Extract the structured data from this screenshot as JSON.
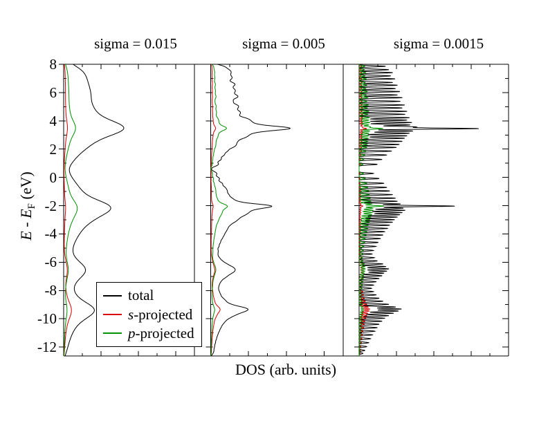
{
  "axes": {
    "x_label": "DOS (arb. units)",
    "y_label_E1": "E",
    "y_label_sep": " - ",
    "y_label_E2": "E",
    "y_label_sub": "F",
    "y_label_units": " (eV)",
    "y_ticks": [
      "8",
      "6",
      "4",
      "2",
      "0",
      "-2",
      "-4",
      "-6",
      "-8",
      "-10",
      "-12"
    ]
  },
  "legend": {
    "entries": [
      {
        "label_italic": "",
        "label": "total",
        "color": "#000000"
      },
      {
        "label_italic": "s",
        "label": "-projected",
        "color": "#d80000"
      },
      {
        "label_italic": "p",
        "label": "-projected",
        "color": "#009000"
      }
    ]
  },
  "chart_data": {
    "type": "line",
    "orientation": "horizontal_dos_vs_energy",
    "xlabel": "DOS (arb. units)",
    "ylabel": "E - EF (eV)",
    "ylim": [
      -12.63,
      8
    ],
    "y_major_ticks": [
      8,
      6,
      4,
      2,
      0,
      -2,
      -4,
      -6,
      -8,
      -10,
      -12
    ],
    "y_minor_ticks": [
      7,
      5,
      3,
      1,
      -1,
      -3,
      -5,
      -7,
      -9,
      -11
    ],
    "grid": false,
    "legend_position": "lower-left-panel-1",
    "series_meta": [
      {
        "name": "total",
        "color": "#000000"
      },
      {
        "name": "s-projected",
        "color": "#d80000"
      },
      {
        "name": "p-projected",
        "color": "#009000"
      }
    ],
    "panels": [
      {
        "title": "sigma = 0.015",
        "sigma": 0.015,
        "peak_fraction": 0.46
      },
      {
        "title": "sigma = 0.005",
        "sigma": 0.005,
        "peak_fraction": 0.6
      },
      {
        "title": "sigma = 0.0015",
        "sigma": 0.0015,
        "peak_fraction": 0.8
      }
    ],
    "sigma_scale_eV": 27.2114,
    "levels_format": [
      "energy_eV",
      "w_total",
      "w_s",
      "w_p"
    ],
    "levels": [
      [
        7.86,
        0.55,
        0.05,
        0.12
      ],
      [
        7.62,
        0.62,
        0.04,
        0.11
      ],
      [
        7.41,
        0.7,
        0.05,
        0.14
      ],
      [
        7.18,
        0.66,
        0.04,
        0.12
      ],
      [
        6.97,
        0.75,
        0.05,
        0.15
      ],
      [
        6.71,
        0.7,
        0.06,
        0.13
      ],
      [
        6.52,
        0.8,
        0.05,
        0.16
      ],
      [
        6.28,
        0.76,
        0.05,
        0.14
      ],
      [
        6.07,
        0.85,
        0.06,
        0.17
      ],
      [
        5.83,
        0.8,
        0.05,
        0.15
      ],
      [
        5.64,
        0.9,
        0.06,
        0.18
      ],
      [
        5.38,
        0.86,
        0.06,
        0.16
      ],
      [
        5.12,
        0.95,
        0.06,
        0.19
      ],
      [
        4.91,
        0.9,
        0.07,
        0.17
      ],
      [
        4.67,
        1.0,
        0.06,
        0.2
      ],
      [
        4.46,
        0.96,
        0.07,
        0.18
      ],
      [
        4.22,
        1.05,
        0.07,
        0.21
      ],
      [
        4.05,
        1.0,
        0.06,
        0.2
      ],
      [
        3.88,
        1.1,
        0.07,
        0.22
      ],
      [
        3.71,
        1.06,
        0.07,
        0.2
      ],
      [
        3.57,
        1.15,
        0.07,
        0.23
      ],
      [
        3.46,
        1.3,
        0.08,
        0.26
      ],
      [
        3.44,
        1.25,
        0.08,
        0.25
      ],
      [
        3.28,
        1.12,
        0.07,
        0.22
      ],
      [
        3.12,
        1.05,
        0.07,
        0.2
      ],
      [
        2.94,
        1.0,
        0.06,
        0.2
      ],
      [
        2.77,
        0.95,
        0.06,
        0.19
      ],
      [
        2.55,
        0.9,
        0.06,
        0.18
      ],
      [
        2.33,
        0.84,
        0.05,
        0.17
      ],
      [
        2.12,
        0.78,
        0.05,
        0.16
      ],
      [
        1.86,
        0.68,
        0.05,
        0.14
      ],
      [
        1.58,
        0.58,
        0.04,
        0.12
      ],
      [
        1.27,
        0.48,
        0.03,
        0.1
      ],
      [
        0.92,
        0.38,
        0.03,
        0.08
      ],
      [
        0.28,
        0.3,
        0.02,
        0.09
      ],
      [
        -0.08,
        0.42,
        0.02,
        0.13
      ],
      [
        -0.42,
        0.52,
        0.02,
        0.16
      ],
      [
        -0.71,
        0.58,
        0.03,
        0.18
      ],
      [
        -0.96,
        0.64,
        0.03,
        0.2
      ],
      [
        -1.22,
        0.7,
        0.03,
        0.21
      ],
      [
        -1.47,
        0.76,
        0.03,
        0.23
      ],
      [
        -1.69,
        0.8,
        0.03,
        0.24
      ],
      [
        -1.88,
        0.86,
        0.04,
        0.26
      ],
      [
        -2.02,
        1.05,
        0.04,
        0.27
      ],
      [
        -2.04,
        1.0,
        0.04,
        0.26
      ],
      [
        -2.18,
        0.92,
        0.04,
        0.28
      ],
      [
        -2.33,
        0.96,
        0.04,
        0.29
      ],
      [
        -2.49,
        0.9,
        0.04,
        0.27
      ],
      [
        -2.64,
        0.85,
        0.03,
        0.26
      ],
      [
        -2.81,
        0.8,
        0.03,
        0.24
      ],
      [
        -2.99,
        0.74,
        0.03,
        0.22
      ],
      [
        -3.17,
        0.7,
        0.03,
        0.21
      ],
      [
        -3.38,
        0.64,
        0.03,
        0.19
      ],
      [
        -3.61,
        0.6,
        0.03,
        0.18
      ],
      [
        -3.84,
        0.54,
        0.03,
        0.16
      ],
      [
        -4.08,
        0.5,
        0.02,
        0.15
      ],
      [
        -4.33,
        0.45,
        0.02,
        0.13
      ],
      [
        -4.6,
        0.4,
        0.02,
        0.12
      ],
      [
        -4.88,
        0.35,
        0.02,
        0.1
      ],
      [
        -5.17,
        0.3,
        0.02,
        0.09
      ],
      [
        -5.42,
        0.27,
        0.02,
        0.08
      ],
      [
        -5.68,
        0.32,
        0.05,
        0.07
      ],
      [
        -5.91,
        0.38,
        0.06,
        0.08
      ],
      [
        -6.12,
        0.5,
        0.08,
        0.11
      ],
      [
        -6.31,
        0.56,
        0.09,
        0.12
      ],
      [
        -6.47,
        0.62,
        0.1,
        0.13
      ],
      [
        -6.63,
        0.58,
        0.1,
        0.12
      ],
      [
        -6.78,
        0.52,
        0.09,
        0.11
      ],
      [
        -6.96,
        0.48,
        0.08,
        0.1
      ],
      [
        -7.15,
        0.42,
        0.07,
        0.09
      ],
      [
        -7.38,
        0.36,
        0.06,
        0.08
      ],
      [
        -7.62,
        0.3,
        0.05,
        0.07
      ],
      [
        -7.85,
        0.26,
        0.05,
        0.06
      ],
      [
        -8.08,
        0.3,
        0.08,
        0.04
      ],
      [
        -8.31,
        0.36,
        0.09,
        0.05
      ],
      [
        -8.55,
        0.42,
        0.11,
        0.05
      ],
      [
        -8.76,
        0.5,
        0.13,
        0.06
      ],
      [
        -8.98,
        0.62,
        0.16,
        0.07
      ],
      [
        -9.17,
        0.76,
        0.19,
        0.08
      ],
      [
        -9.31,
        0.88,
        0.22,
        0.09
      ],
      [
        -9.45,
        0.82,
        0.21,
        0.09
      ],
      [
        -9.61,
        0.72,
        0.18,
        0.08
      ],
      [
        -9.78,
        0.62,
        0.16,
        0.07
      ],
      [
        -9.96,
        0.54,
        0.14,
        0.06
      ],
      [
        -10.17,
        0.48,
        0.12,
        0.06
      ],
      [
        -10.39,
        0.42,
        0.11,
        0.05
      ],
      [
        -10.63,
        0.38,
        0.1,
        0.05
      ],
      [
        -10.88,
        0.33,
        0.08,
        0.04
      ],
      [
        -11.14,
        0.28,
        0.07,
        0.04
      ],
      [
        -11.41,
        0.24,
        0.06,
        0.03
      ],
      [
        -11.69,
        0.2,
        0.05,
        0.03
      ],
      [
        -11.97,
        0.16,
        0.04,
        0.02
      ],
      [
        -12.24,
        0.12,
        0.03,
        0.02
      ],
      [
        -12.45,
        0.08,
        0.02,
        0.01
      ]
    ]
  }
}
